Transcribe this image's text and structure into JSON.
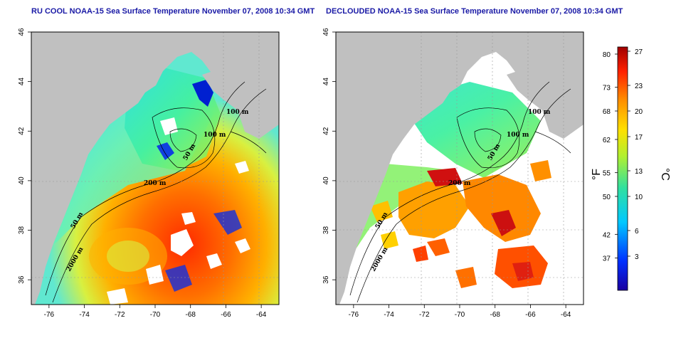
{
  "left_panel": {
    "title": "RU COOL NOAA-15 Sea Surface Temperature November 07, 2008 10:34 GMT",
    "contour_labels": [
      "100 m",
      "100 m",
      "50 m",
      "200 m",
      "50 m",
      "2000 m"
    ]
  },
  "right_panel": {
    "title": "DECLOUDED NOAA-15 Sea Surface Temperature November 07, 2008 10:34 GMT",
    "contour_labels": [
      "100 m",
      "100 m",
      "50 m",
      "200 m",
      "50 m",
      "2000 m"
    ]
  },
  "axes": {
    "lon_ticks": [
      "-76",
      "-74",
      "-72",
      "-70",
      "-68",
      "-66",
      "-64"
    ],
    "lat_ticks": [
      "46",
      "44",
      "42",
      "40",
      "38",
      "36"
    ]
  },
  "colorbar": {
    "fahrenheit_label": "°F",
    "celsius_label": "°C",
    "fahrenheit_ticks": [
      "80",
      "73",
      "68",
      "62",
      "55",
      "50",
      "42",
      "37"
    ],
    "celsius_ticks": [
      "27",
      "23",
      "20",
      "17",
      "13",
      "10",
      "6",
      "3"
    ]
  },
  "colors": {
    "title": "#1a1aa6",
    "land": "#c0c0c0",
    "cloud_mask": "#ffffff"
  }
}
